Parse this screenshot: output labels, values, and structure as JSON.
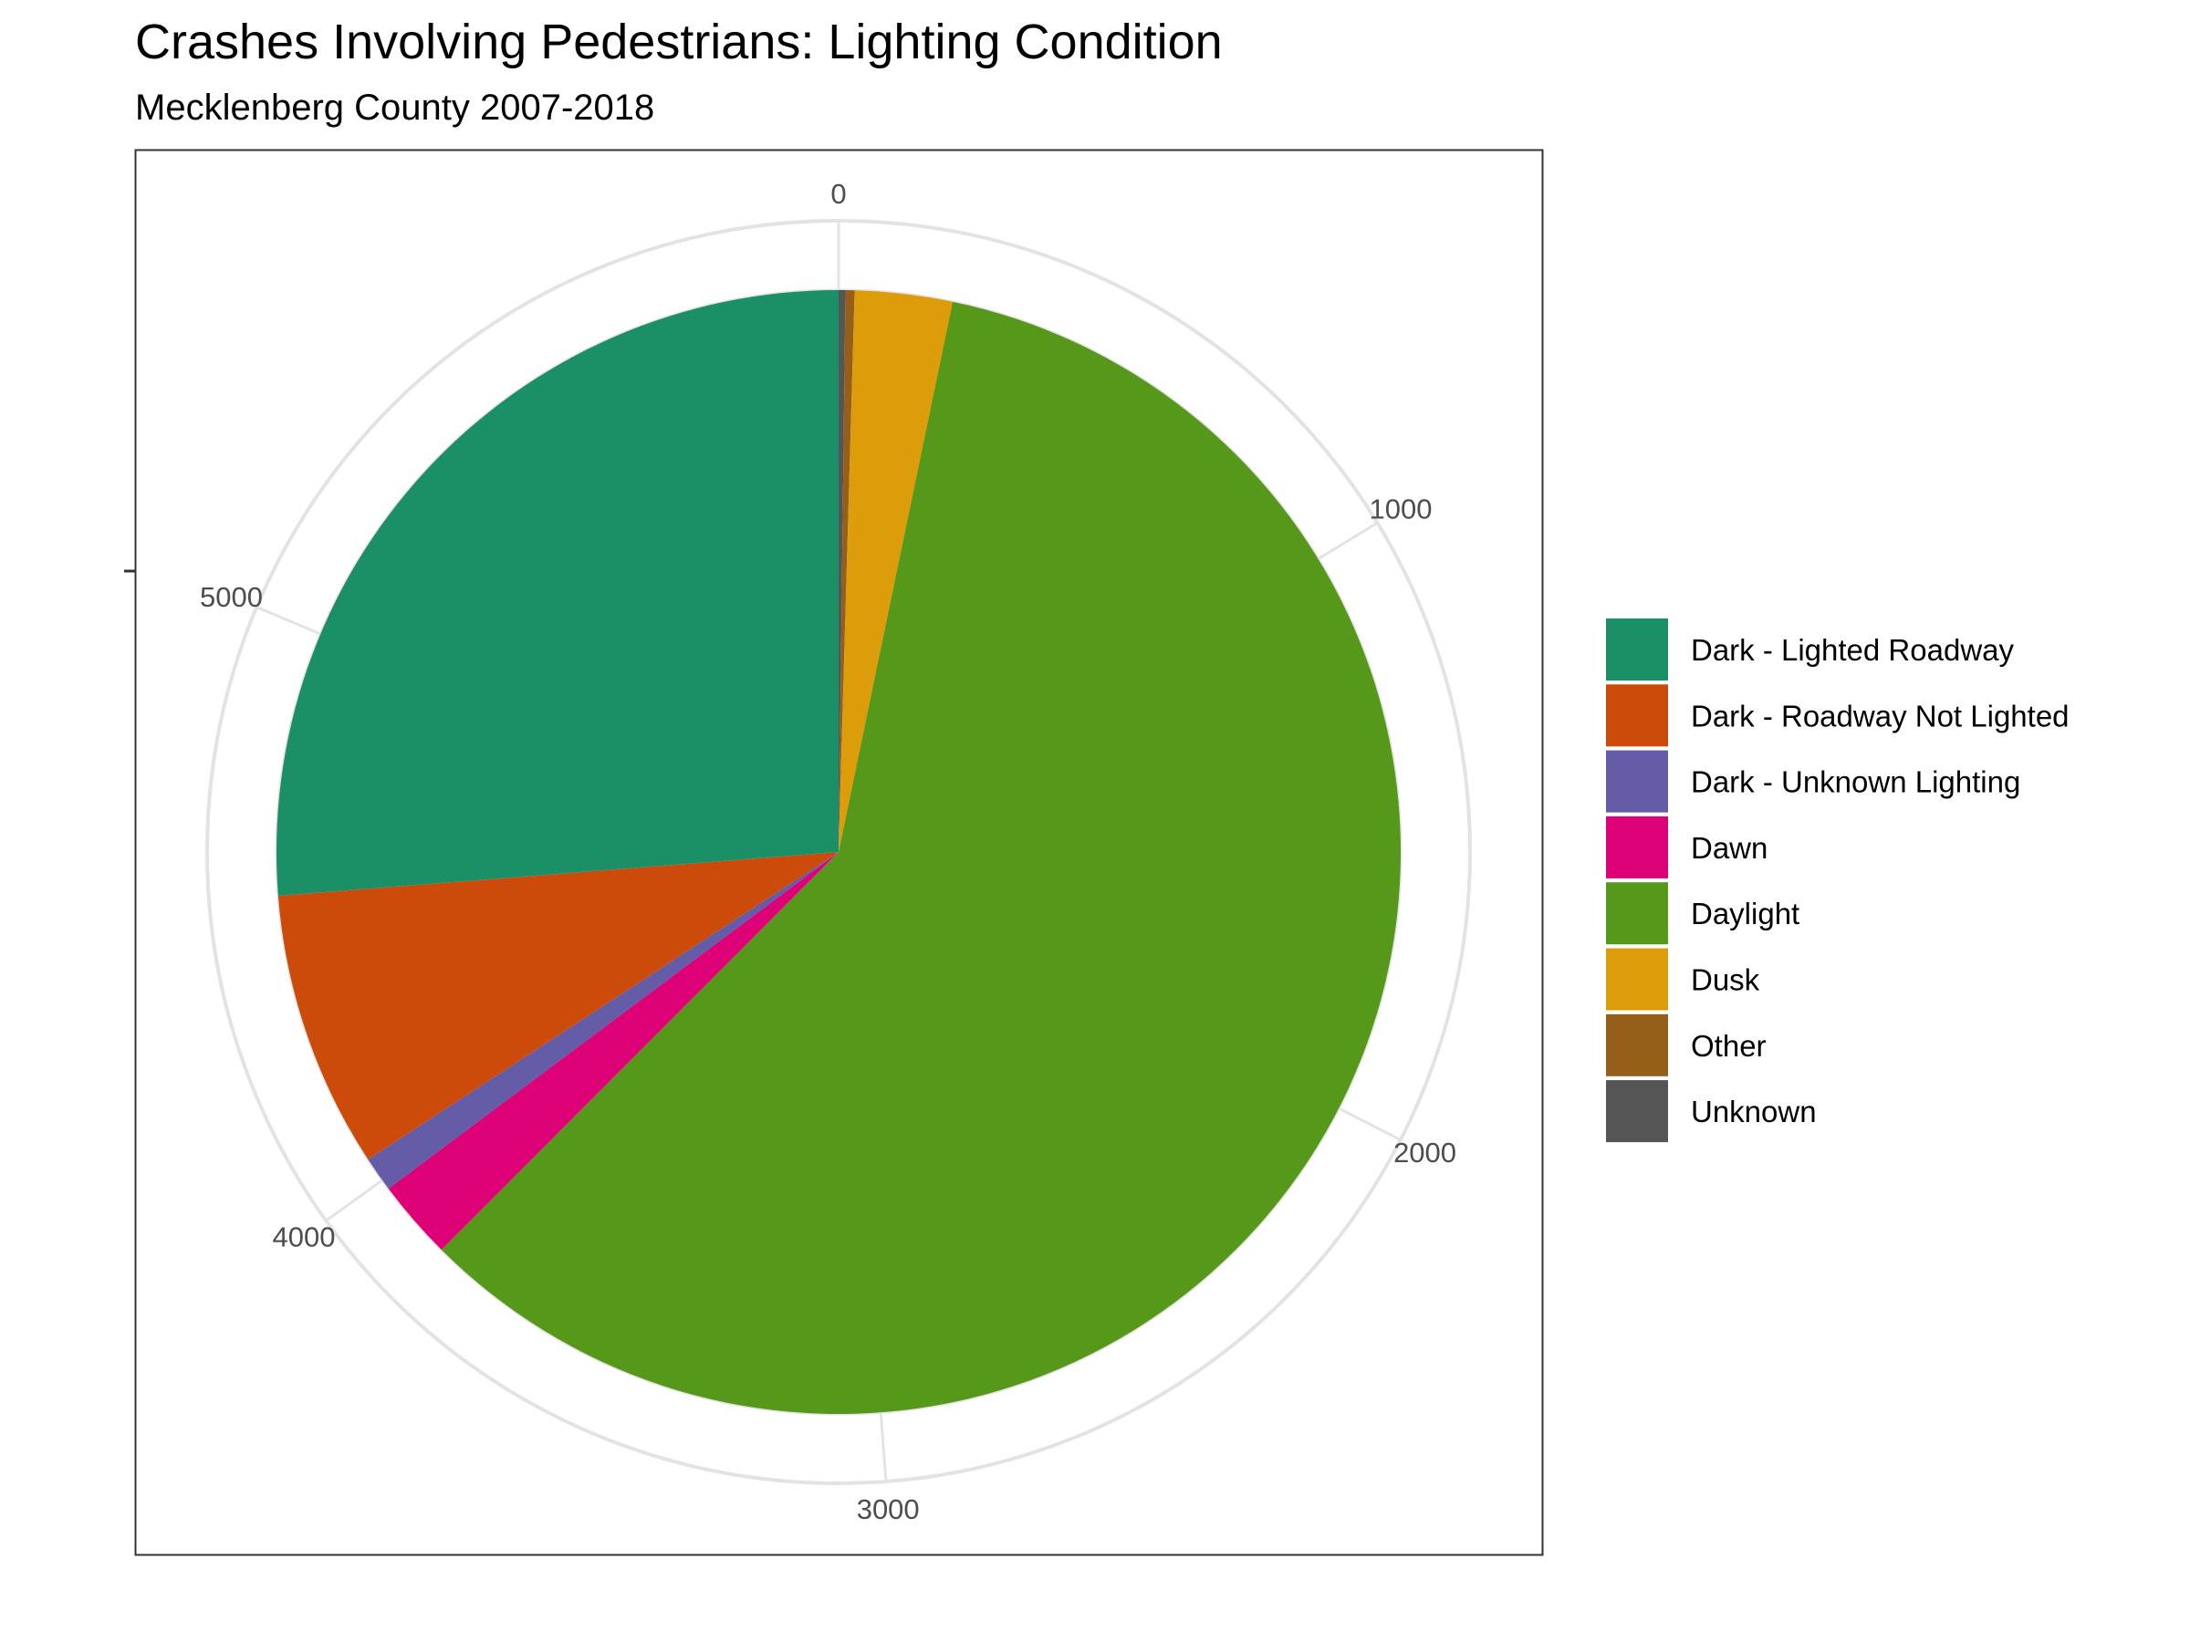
{
  "chart_data": {
    "type": "pie",
    "title": "Crashes Involving Pedestrians: Lighting Condition",
    "subtitle": "Mecklenberg County 2007-2018",
    "total": 6147,
    "radial_ticks": [
      0,
      1000,
      2000,
      3000,
      4000,
      5000
    ],
    "slices": [
      {
        "label": "Dark - Lighted Roadway",
        "value": 1613,
        "color": "#1b9067"
      },
      {
        "label": "Dark - Roadway Not Lighted",
        "value": 490,
        "color": "#cc4a0a"
      },
      {
        "label": "Dark - Unknown Lighting",
        "value": 62,
        "color": "#655ca8"
      },
      {
        "label": "Dawn",
        "value": 141,
        "color": "#de0077"
      },
      {
        "label": "Daylight",
        "value": 3641,
        "color": "#55981a"
      },
      {
        "label": "Dusk",
        "value": 172,
        "color": "#dd9c0a"
      },
      {
        "label": "Other",
        "value": 16,
        "color": "#955f1a"
      },
      {
        "label": "Unknown",
        "value": 12,
        "color": "#555555"
      }
    ],
    "stack_order": [
      "Unknown",
      "Other",
      "Dusk",
      "Daylight",
      "Dawn",
      "Dark - Unknown Lighting",
      "Dark - Roadway Not Lighted",
      "Dark - Lighted Roadway"
    ],
    "legend_placement": "right",
    "grid": true
  },
  "colors": {
    "grid": "#e3e3e3",
    "panel_border": "#333333",
    "tick_text": "#4d4d4d"
  }
}
